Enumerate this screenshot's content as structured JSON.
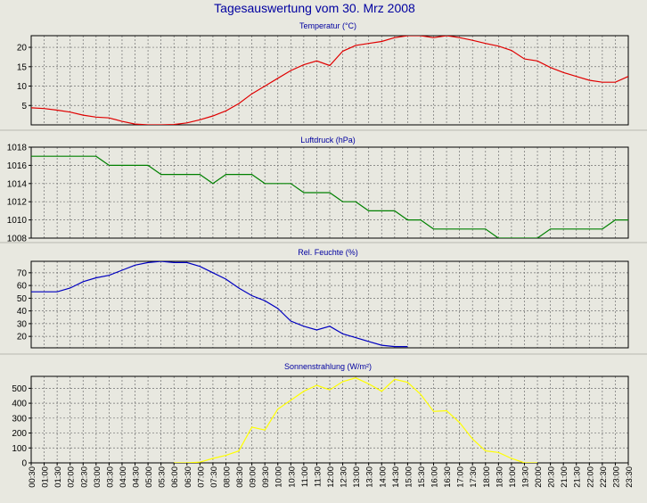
{
  "page": {
    "title": "Tagesauswertung vom 30. Mrz 2008"
  },
  "colors": {
    "background": "#e8e8e0",
    "plot_bg": "#e8e8e0",
    "title": "#0000a0",
    "grid": "#707070",
    "axis": "#000000",
    "separator": "#b8b8b0"
  },
  "time_labels": [
    "00:30",
    "01:00",
    "01:30",
    "02:00",
    "02:30",
    "03:00",
    "03:30",
    "04:00",
    "04:30",
    "05:00",
    "05:30",
    "06:00",
    "06:30",
    "07:00",
    "07:30",
    "08:00",
    "08:30",
    "09:00",
    "09:30",
    "10:00",
    "10:30",
    "11:00",
    "11:30",
    "12:00",
    "12:30",
    "13:00",
    "13:30",
    "14:00",
    "14:30",
    "15:00",
    "15:30",
    "16:00",
    "16:30",
    "17:00",
    "17:30",
    "18:00",
    "18:30",
    "19:00",
    "19:30",
    "20:00",
    "20:30",
    "21:00",
    "21:30",
    "22:00",
    "22:30",
    "23:00",
    "23:30"
  ],
  "chart_data": [
    {
      "type": "line",
      "title": "Temperatur (°C)",
      "color": "#e00000",
      "ylim": [
        0,
        23
      ],
      "yticks": [
        5,
        10,
        15,
        20
      ],
      "xlim": [
        0.5,
        23.5
      ],
      "grid": true,
      "x": [
        0.0,
        0.5,
        1.0,
        1.5,
        2.0,
        2.5,
        3.0,
        3.5,
        4.0,
        4.5,
        5.0,
        5.5,
        6.0,
        6.5,
        7.0,
        7.5,
        8.0,
        8.5,
        9.0,
        9.5,
        10.0,
        10.5,
        11.0,
        11.5,
        12.0,
        12.5,
        13.0,
        13.5,
        14.0,
        14.5,
        15.0,
        15.5,
        16.0,
        16.5,
        17.0,
        17.5,
        18.0,
        18.5,
        19.0,
        19.5,
        20.0,
        20.5,
        21.0,
        21.5,
        22.0,
        22.5,
        23.0,
        23.5
      ],
      "y": [
        4.5,
        4.4,
        4.2,
        3.8,
        3.3,
        2.5,
        2.0,
        1.8,
        0.9,
        0.2,
        0.0,
        0.0,
        0.1,
        0.5,
        1.3,
        2.3,
        3.6,
        5.5,
        8.0,
        10.0,
        12.0,
        14.0,
        15.5,
        16.5,
        15.3,
        19.0,
        20.5,
        21.0,
        21.5,
        22.5,
        23.0,
        23.0,
        22.5,
        23.0,
        22.5,
        21.8,
        21.0,
        20.3,
        19.2,
        17.0,
        16.5,
        14.8,
        13.5,
        12.5,
        11.5,
        11.0,
        11.0,
        12.5
      ]
    },
    {
      "type": "line",
      "title": "Luftdruck (hPa)",
      "color": "#008000",
      "ylim": [
        1008,
        1018
      ],
      "yticks": [
        1008,
        1010,
        1012,
        1014,
        1016,
        1018
      ],
      "xlim": [
        0.5,
        23.5
      ],
      "grid": true,
      "x": [
        0.0,
        0.5,
        1.0,
        1.5,
        2.0,
        2.5,
        3.0,
        3.5,
        4.0,
        4.5,
        5.0,
        5.5,
        6.0,
        6.5,
        7.0,
        7.5,
        8.0,
        8.5,
        9.0,
        9.5,
        10.0,
        10.5,
        11.0,
        11.5,
        12.0,
        12.5,
        13.0,
        13.5,
        14.0,
        14.5,
        15.0,
        15.5,
        16.0,
        16.5,
        17.0,
        17.5,
        18.0,
        18.5,
        19.0,
        19.5,
        20.0,
        20.5,
        21.0,
        21.5,
        22.0,
        22.5,
        23.0,
        23.5
      ],
      "y": [
        1018,
        1017,
        1017,
        1017,
        1017,
        1017,
        1017,
        1016,
        1016,
        1016,
        1016,
        1015,
        1015,
        1015,
        1015,
        1014,
        1015,
        1015,
        1015,
        1014,
        1014,
        1014,
        1013,
        1013,
        1013,
        1012,
        1012,
        1011,
        1011,
        1011,
        1010,
        1010,
        1009,
        1009,
        1009,
        1009,
        1009,
        1008,
        1008,
        1008,
        1008,
        1009,
        1009,
        1009,
        1009,
        1009,
        1010,
        1010
      ]
    },
    {
      "type": "line",
      "title": "Rel. Feuchte (%)",
      "color": "#0000c0",
      "ylim": [
        11,
        79
      ],
      "yticks": [
        20,
        30,
        40,
        50,
        60,
        70
      ],
      "xlim": [
        0.5,
        23.5
      ],
      "grid": true,
      "x": [
        0.0,
        0.5,
        1.0,
        1.5,
        2.0,
        2.5,
        3.0,
        3.5,
        4.0,
        4.5,
        5.0,
        5.5,
        6.0,
        6.5,
        7.0,
        7.5,
        8.0,
        8.5,
        9.0,
        9.5,
        10.0,
        10.5,
        11.0,
        11.5,
        12.0,
        12.5,
        13.0,
        13.5,
        14.0,
        14.5,
        15.0
      ],
      "y": [
        55,
        55,
        55,
        55,
        58,
        63,
        66,
        68,
        72,
        76,
        78,
        79,
        78,
        78,
        75,
        70,
        65,
        58,
        52,
        48,
        42,
        32,
        28,
        25,
        28,
        22,
        19,
        16,
        13,
        12,
        12
      ]
    },
    {
      "type": "line",
      "title": "Sonnenstrahlung (W/m²)",
      "color": "#ffff00",
      "ylim": [
        0,
        580
      ],
      "yticks": [
        0,
        100,
        200,
        300,
        400,
        500
      ],
      "xlim": [
        0.5,
        23.5
      ],
      "grid": true,
      "x": [
        6.0,
        6.5,
        7.0,
        7.5,
        8.0,
        8.5,
        9.0,
        9.5,
        10.0,
        10.5,
        11.0,
        11.5,
        12.0,
        12.5,
        13.0,
        13.5,
        14.0,
        14.5,
        15.0,
        15.5,
        16.0,
        16.5,
        17.0,
        17.5,
        18.0,
        18.5,
        19.0,
        19.5,
        20.0
      ],
      "y": [
        0,
        0,
        5,
        30,
        50,
        80,
        240,
        220,
        360,
        420,
        480,
        520,
        490,
        545,
        570,
        530,
        480,
        560,
        540,
        460,
        345,
        350,
        270,
        160,
        80,
        70,
        30,
        0,
        0
      ]
    }
  ]
}
